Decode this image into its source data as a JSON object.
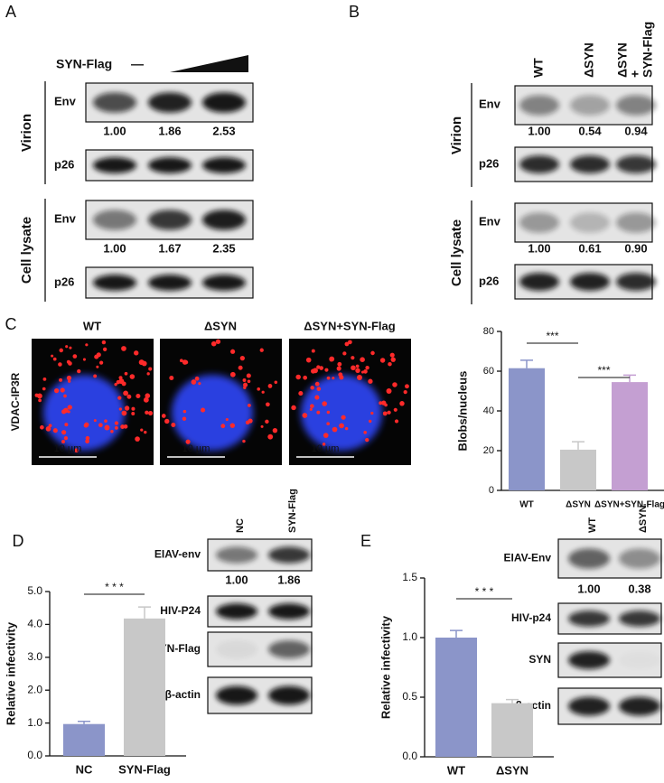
{
  "panels": {
    "A": {
      "label": "A",
      "treatment": "SYN-Flag",
      "control": "—",
      "groups": [
        {
          "name": "Virion",
          "rows": [
            {
              "label": "Env",
              "quant": [
                "1.00",
                "1.86",
                "2.53"
              ]
            },
            {
              "label": "p26"
            }
          ]
        },
        {
          "name": "Cell lysate",
          "rows": [
            {
              "label": "Env",
              "quant": [
                "1.00",
                "1.67",
                "2.35"
              ]
            },
            {
              "label": "p26"
            }
          ]
        }
      ]
    },
    "B": {
      "label": "B",
      "lanes": [
        [
          "WT"
        ],
        [
          "ΔSYN"
        ],
        [
          "ΔSYN",
          "+",
          "SYN-Flag"
        ]
      ],
      "groups": [
        {
          "name": "Virion",
          "rows": [
            {
              "label": "Env",
              "quant": [
                "1.00",
                "0.54",
                "0.94"
              ]
            },
            {
              "label": "p26"
            }
          ]
        },
        {
          "name": "Cell lysate",
          "rows": [
            {
              "label": "Env",
              "quant": [
                "1.00",
                "0.61",
                "0.90"
              ]
            },
            {
              "label": "p26"
            }
          ]
        }
      ]
    },
    "C": {
      "label": "C",
      "stain": "VDAC-IP3R",
      "images": [
        "WT",
        "ΔSYN",
        "ΔSYN+SYN-Flag"
      ],
      "scale_bar": "10 µm"
    },
    "D": {
      "label": "D",
      "lanes": [
        "NC",
        "SYN-Flag"
      ],
      "rows": [
        {
          "label": "EIAV-env",
          "quant": [
            "1.00",
            "1.86"
          ]
        },
        {
          "label": "HIV-P24"
        },
        {
          "label": "SYN-Flag"
        },
        {
          "label": "β-actin"
        }
      ]
    },
    "E": {
      "label": "E",
      "lanes": [
        "WT",
        "ΔSYN"
      ],
      "rows": [
        {
          "label": "EIAV-Env",
          "quant": [
            "1.00",
            "0.38"
          ]
        },
        {
          "label": "HIV-p24"
        },
        {
          "label": "SYN"
        },
        {
          "label": "β-actin"
        }
      ]
    }
  },
  "chart_data": [
    {
      "type": "bar",
      "ylabel": "Blobs/nucleus",
      "categories": [
        "WT",
        "ΔSYN",
        "ΔSYN+SYN-Flag"
      ],
      "values": [
        61.5,
        20.5,
        54.5
      ],
      "errors": [
        4,
        4,
        3.5
      ],
      "colors": [
        "#8b95c9",
        "#c8c8c8",
        "#c49fd2"
      ],
      "ylim": [
        0,
        80
      ],
      "yticks": [
        0,
        20,
        40,
        60,
        80
      ],
      "annotations": [
        "***",
        "***"
      ]
    },
    {
      "type": "bar",
      "ylabel": "Relative infectivity",
      "categories": [
        "NC",
        "SYN-Flag"
      ],
      "values": [
        0.97,
        4.18
      ],
      "errors": [
        0.08,
        0.35
      ],
      "colors": [
        "#8b95c9",
        "#c8c8c8"
      ],
      "ylim": [
        0,
        5
      ],
      "yticks": [
        {
          "value": 0,
          "label": "0.0"
        },
        {
          "value": 1,
          "label": "1.0"
        },
        {
          "value": 2,
          "label": "2.0"
        },
        {
          "value": 3,
          "label": "3.0"
        },
        {
          "value": 4,
          "label": "4.0"
        },
        {
          "value": 5,
          "label": "5.0"
        }
      ],
      "annotations": [
        "* * *"
      ]
    },
    {
      "type": "bar",
      "ylabel": "Relative infectivity",
      "categories": [
        "WT",
        "ΔSYN"
      ],
      "values": [
        1.0,
        0.45
      ],
      "errors": [
        0.06,
        0.03
      ],
      "colors": [
        "#8b95c9",
        "#c8c8c8"
      ],
      "ylim": [
        0,
        1.5
      ],
      "yticks": [
        {
          "value": 0,
          "label": "0.0"
        },
        {
          "value": 0.5,
          "label": "0.5"
        },
        {
          "value": 1,
          "label": "1.0"
        },
        {
          "value": 1.5,
          "label": "1.5"
        }
      ],
      "annotations": [
        "* * *"
      ]
    }
  ]
}
